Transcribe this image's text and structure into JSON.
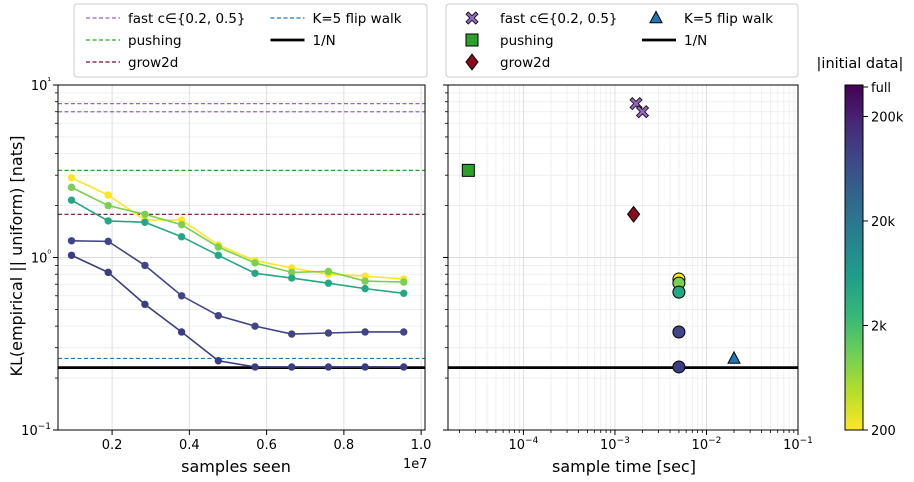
{
  "chart_data": [
    {
      "type": "line",
      "xlabel": "samples seen",
      "ylabel": "KL(empirical || uniform) [nats]",
      "x_offset_label": "1e7",
      "xlim": [
        0.06,
        1.01
      ],
      "ylim": [
        0.1,
        10
      ],
      "yscale": "log",
      "grid": true,
      "x_ticks": [
        0.2,
        0.4,
        0.6,
        0.8,
        1.0
      ],
      "x_tick_labels": [
        "0.2",
        "0.4",
        "0.6",
        "0.8",
        "1.0"
      ],
      "y_ticks": [
        0.1,
        1,
        10
      ],
      "y_tick_labels": [
        "10−1",
        "10⁰",
        "10¹"
      ],
      "x": [
        0.095,
        0.19,
        0.285,
        0.38,
        0.475,
        0.57,
        0.665,
        0.76,
        0.855,
        0.955
      ],
      "series": [
        {
          "initial_data_size": "200",
          "color": "#fde725",
          "values": [
            2.9,
            2.3,
            1.65,
            1.65,
            1.18,
            0.96,
            0.87,
            0.8,
            0.78,
            0.75
          ]
        },
        {
          "initial_data_size": "2k",
          "color": "#7ad151",
          "values": [
            2.55,
            2.0,
            1.78,
            1.55,
            1.15,
            0.93,
            0.82,
            0.83,
            0.73,
            0.72
          ]
        },
        {
          "initial_data_size": "20k",
          "color": "#22a884",
          "values": [
            2.15,
            1.63,
            1.6,
            1.32,
            1.03,
            0.81,
            0.76,
            0.71,
            0.66,
            0.62
          ]
        },
        {
          "initial_data_size": "200k",
          "color": "#414487",
          "values": [
            1.25,
            1.24,
            0.9,
            0.6,
            0.46,
            0.4,
            0.36,
            0.365,
            0.37,
            0.37
          ]
        },
        {
          "initial_data_size": "full",
          "color": "#3b3d80",
          "values": [
            1.03,
            0.82,
            0.535,
            0.37,
            0.252,
            0.232,
            0.232,
            0.232,
            0.232,
            0.232
          ]
        }
      ],
      "reference_lines": [
        {
          "name": "fast c∈{0.2, 0.5}",
          "color": "#9467bd",
          "dashed": true,
          "values": [
            7.8,
            7.0
          ]
        },
        {
          "name": "pushing",
          "color": "#2ca02c",
          "dashed": true,
          "values": [
            3.2
          ]
        },
        {
          "name": "grow2d",
          "color": "#7b0d24",
          "dashed": true,
          "values": [
            1.78
          ]
        },
        {
          "name": "K=5 flip walk",
          "color": "#1f77b4",
          "dashed": true,
          "values": [
            0.26
          ]
        },
        {
          "name": "1/N",
          "color": "#000000",
          "dashed": false,
          "values": [
            0.23
          ]
        }
      ],
      "legend": {
        "placement": "above",
        "columns": 2,
        "entries": [
          "fast c∈{0.2, 0.5}",
          "pushing",
          "grow2d",
          "K=5 flip walk",
          "1/N"
        ]
      }
    },
    {
      "type": "scatter",
      "xlabel": "sample time [sec]",
      "xscale": "log",
      "yscale": "log",
      "xlim": [
        1.5e-05,
        0.1
      ],
      "ylim": [
        0.1,
        10
      ],
      "grid": true,
      "x_ticks": [
        0.0001,
        0.001,
        0.01,
        0.1
      ],
      "x_tick_labels": [
        "10−4",
        "10−3",
        "10−2",
        "10−1"
      ],
      "points": [
        {
          "method": "fast c∈{0.2, 0.5}",
          "marker": "X",
          "color": "#9467bd",
          "x": 0.0017,
          "y": 7.8
        },
        {
          "method": "fast c∈{0.2, 0.5}",
          "marker": "X",
          "color": "#9467bd",
          "x": 0.002,
          "y": 7.0
        },
        {
          "method": "pushing",
          "marker": "square",
          "color": "#2ca02c",
          "x": 2.5e-05,
          "y": 3.2
        },
        {
          "method": "grow2d",
          "marker": "diamond",
          "color": "#8b0a1e",
          "x": 0.0016,
          "y": 1.78
        },
        {
          "method": "K=5 flip walk",
          "marker": "triangle",
          "color": "#1f77b4",
          "x": 0.02,
          "y": 0.26
        },
        {
          "method": "circle",
          "marker": "circle",
          "color": "#fde725",
          "x": 0.005,
          "y": 0.75
        },
        {
          "method": "circle",
          "marker": "circle",
          "color": "#7ad151",
          "x": 0.005,
          "y": 0.71
        },
        {
          "method": "circle",
          "marker": "circle",
          "color": "#22a884",
          "x": 0.005,
          "y": 0.63
        },
        {
          "method": "circle",
          "marker": "circle",
          "color": "#414487",
          "x": 0.005,
          "y": 0.37
        },
        {
          "method": "circle",
          "marker": "circle",
          "color": "#3b3d80",
          "x": 0.005,
          "y": 0.232
        }
      ],
      "reference_line_1_over_N": 0.23,
      "legend": {
        "placement": "above",
        "columns": 2,
        "entries": [
          "fast c∈{0.2, 0.5}",
          "pushing",
          "grow2d",
          "K=5 flip walk",
          "1/N"
        ]
      }
    },
    {
      "type": "heatmap",
      "role": "colorbar",
      "title": "|initial data|",
      "colormap": [
        "#fde725",
        "#b5de2b",
        "#6ece58",
        "#35b779",
        "#1f9e89",
        "#26828e",
        "#31688e",
        "#3e4989",
        "#482878",
        "#440154"
      ],
      "tick_labels": [
        "full",
        "200k",
        "20k",
        "2k",
        "200"
      ]
    }
  ]
}
